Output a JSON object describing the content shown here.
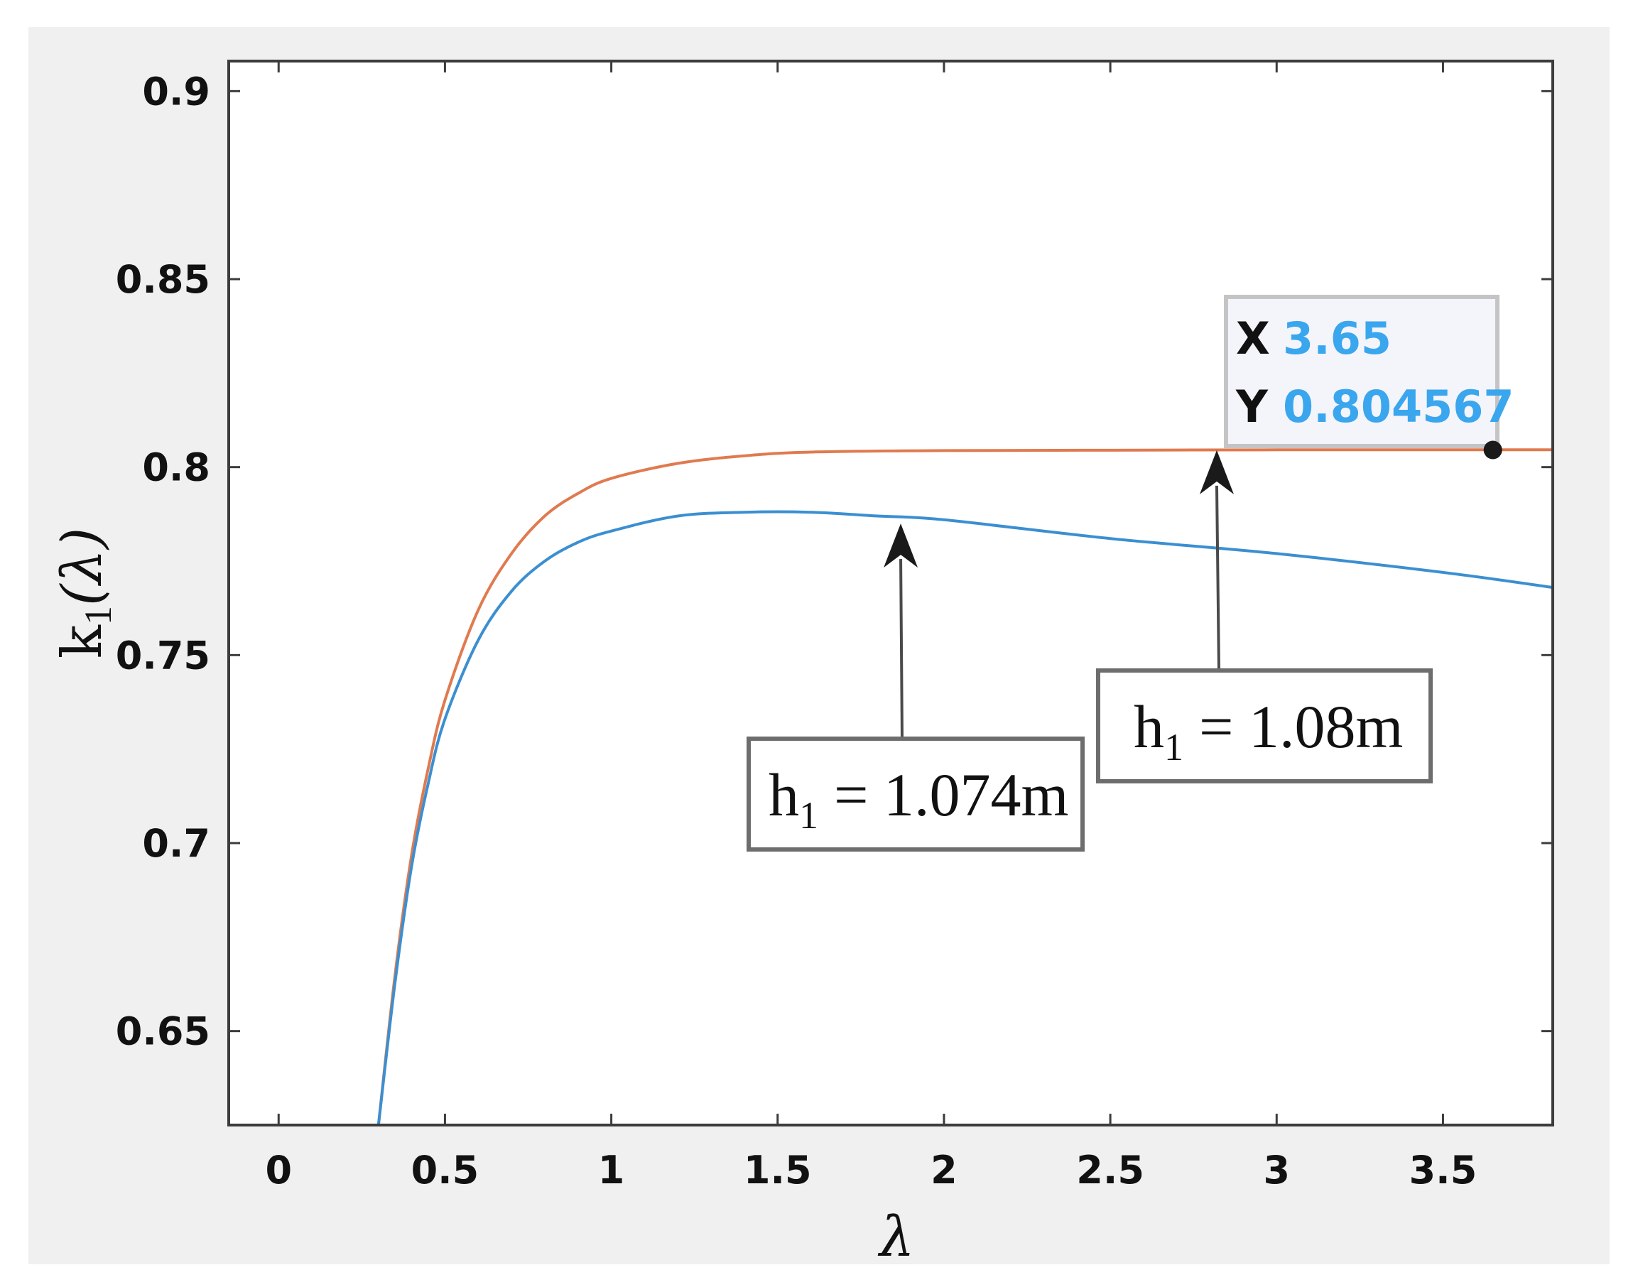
{
  "chart_data": {
    "type": "line",
    "xlabel": "λ",
    "ylabel_main": "k",
    "ylabel_sub": "1",
    "ylabel_arg": "(λ)",
    "xlim": [
      -0.15,
      3.83
    ],
    "ylim": [
      0.625,
      0.908
    ],
    "x_ticks": [
      0,
      0.5,
      1,
      1.5,
      2,
      2.5,
      3,
      3.5
    ],
    "x_tick_labels": [
      "0",
      "0.5",
      "1",
      "1.5",
      "2",
      "2.5",
      "3",
      "3.5"
    ],
    "y_ticks": [
      0.65,
      0.7,
      0.75,
      0.8,
      0.85,
      0.9
    ],
    "y_tick_labels": [
      "0.65",
      "0.7",
      "0.75",
      "0.8",
      "0.85",
      "0.9"
    ],
    "grid": false,
    "series": [
      {
        "color": "#e07a4f",
        "x": [
          0.3,
          0.35,
          0.4,
          0.45,
          0.5,
          0.6,
          0.7,
          0.8,
          0.9,
          1.0,
          1.2,
          1.4,
          1.6,
          2.0,
          2.5,
          3.0,
          3.5,
          3.83
        ],
        "values": [
          0.625,
          0.665,
          0.697,
          0.72,
          0.738,
          0.762,
          0.777,
          0.787,
          0.793,
          0.797,
          0.801,
          0.803,
          0.804,
          0.8044,
          0.8045,
          0.8046,
          0.8046,
          0.8046
        ]
      },
      {
        "color": "#3b8fd1",
        "x": [
          0.3,
          0.35,
          0.4,
          0.45,
          0.5,
          0.6,
          0.7,
          0.8,
          0.9,
          1.0,
          1.2,
          1.4,
          1.6,
          1.8,
          2.0,
          2.5,
          3.0,
          3.5,
          3.83
        ],
        "values": [
          0.625,
          0.663,
          0.694,
          0.716,
          0.733,
          0.754,
          0.767,
          0.775,
          0.78,
          0.783,
          0.787,
          0.788,
          0.788,
          0.787,
          0.786,
          0.781,
          0.777,
          0.772,
          0.768
        ]
      }
    ],
    "annotations": [
      {
        "text_main": "h",
        "text_sub": "1",
        "text_rest": "=1.074m",
        "points_to_series": 1,
        "arrow_target": [
          1.87,
          0.785
        ]
      },
      {
        "text_main": "h",
        "text_sub": "1",
        "text_rest": "=1.08m",
        "points_to_series": 0,
        "arrow_target": [
          2.82,
          0.8045
        ]
      }
    ],
    "datatip": {
      "x_key": "X",
      "x_value": "3.65",
      "y_key": "Y",
      "y_value": "0.804567",
      "point": [
        3.65,
        0.804567
      ],
      "value_color": "#3aa6ee"
    }
  }
}
